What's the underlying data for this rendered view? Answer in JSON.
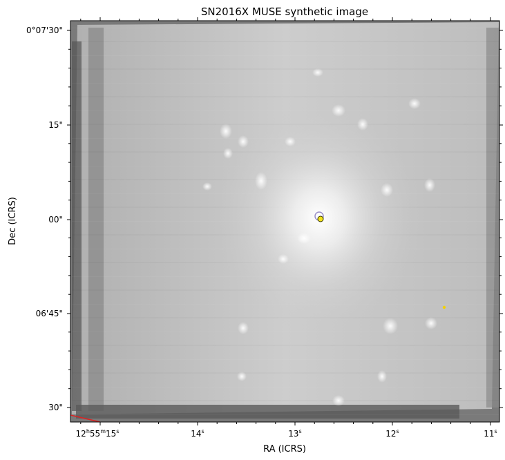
{
  "chart_data": {
    "type": "image",
    "title": "SN2016X MUSE synthetic image",
    "xlabel": "RA (ICRS)",
    "ylabel": "Dec (ICRS)",
    "colormap": "gray",
    "x_ticks": [
      {
        "h": "12",
        "m": "55",
        "s": "15",
        "label": "12h55m15s"
      },
      {
        "s": "14",
        "label": "14s"
      },
      {
        "s": "13",
        "label": "13s"
      },
      {
        "s": "12",
        "label": "12s"
      },
      {
        "s": "11",
        "label": "11s"
      }
    ],
    "y_ticks": [
      {
        "label": "0°07'30\""
      },
      {
        "label": "15\""
      },
      {
        "label": "00\""
      },
      {
        "label": "06'45\""
      },
      {
        "label": "30\""
      }
    ],
    "markers": [
      {
        "name": "SN2016X position",
        "shape": "open circle",
        "color": "#9a8fc8"
      },
      {
        "name": "galaxy nucleus",
        "shape": "filled circle",
        "color": "#f2e21a"
      },
      {
        "name": "second source",
        "shape": "small dot",
        "color": "#f2d000"
      }
    ],
    "bright_knots": [],
    "colors": {
      "background": "#7a7a7a",
      "frame": "#000000",
      "edge_line": "#dd2222"
    }
  }
}
